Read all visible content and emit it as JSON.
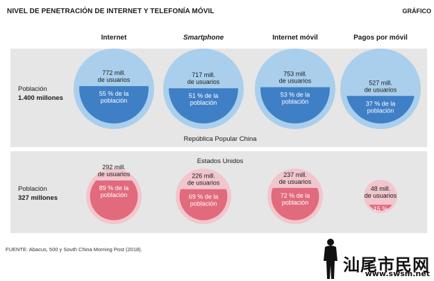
{
  "header": {
    "title": "NIVEL DE PENETRACIÓN DE INTERNET Y TELEFONÍA MÓVIL",
    "grafico": "GRÁFICO"
  },
  "columns": [
    {
      "label": "Internet",
      "italic": false
    },
    {
      "label": "Smartphone",
      "italic": true
    },
    {
      "label": "Internet móvil",
      "italic": false
    },
    {
      "label": "Pagos por móvil",
      "italic": false
    }
  ],
  "china": {
    "country": "República Popular China",
    "pop_label_1": "Población",
    "pop_label_2": "1.400 millones"
  },
  "us": {
    "country": "Estados Unidos",
    "pop_label_1": "Población",
    "pop_label_2": "327 millones"
  },
  "colors": {
    "china_outer": "#a9cfec",
    "china_inner": "#3f7fc6",
    "us_outer": "#f2c6cd",
    "us_inner": "#e16a7d",
    "panel": "#e6e6e6"
  },
  "chart_data": {
    "type": "proportional-area",
    "categories": [
      "Internet",
      "Smartphone",
      "Internet móvil",
      "Pagos por móvil"
    ],
    "series": [
      {
        "name": "República Popular China",
        "population_millions": 1400,
        "users_millions": [
          772,
          717,
          753,
          527
        ],
        "percent": [
          55,
          51,
          53,
          37
        ],
        "users_labels": [
          "772 mill.\nde usuarios",
          "717 mill.\nde usuarios",
          "753 mill.\nde usuarios",
          "527 mill.\nde usuarios"
        ],
        "percent_labels": [
          "55 % de la\npoblación",
          "51 % de la\npoblación",
          "53 % de la\npoblación",
          "37 % de la\npoblación"
        ]
      },
      {
        "name": "Estados Unidos",
        "population_millions": 327,
        "users_millions": [
          292,
          226,
          237,
          48
        ],
        "percent": [
          89,
          69,
          72,
          15
        ],
        "users_labels": [
          "292 mill.\nde usuarios",
          "226 mill.\nde usuarios",
          "237 mill.\nde usuarios",
          "48 mill.\nde usuarios"
        ],
        "percent_labels": [
          "89 % de la\npoblación",
          "69 % de la\npoblación",
          "72 % de la\npoblación",
          "15 %"
        ]
      }
    ]
  },
  "footer": {
    "source": "FUENTE: Abacus, 500 y South China Morning Post (2018)."
  },
  "watermark": {
    "text": "汕尾市民网",
    "url": "www.swsm.net"
  }
}
